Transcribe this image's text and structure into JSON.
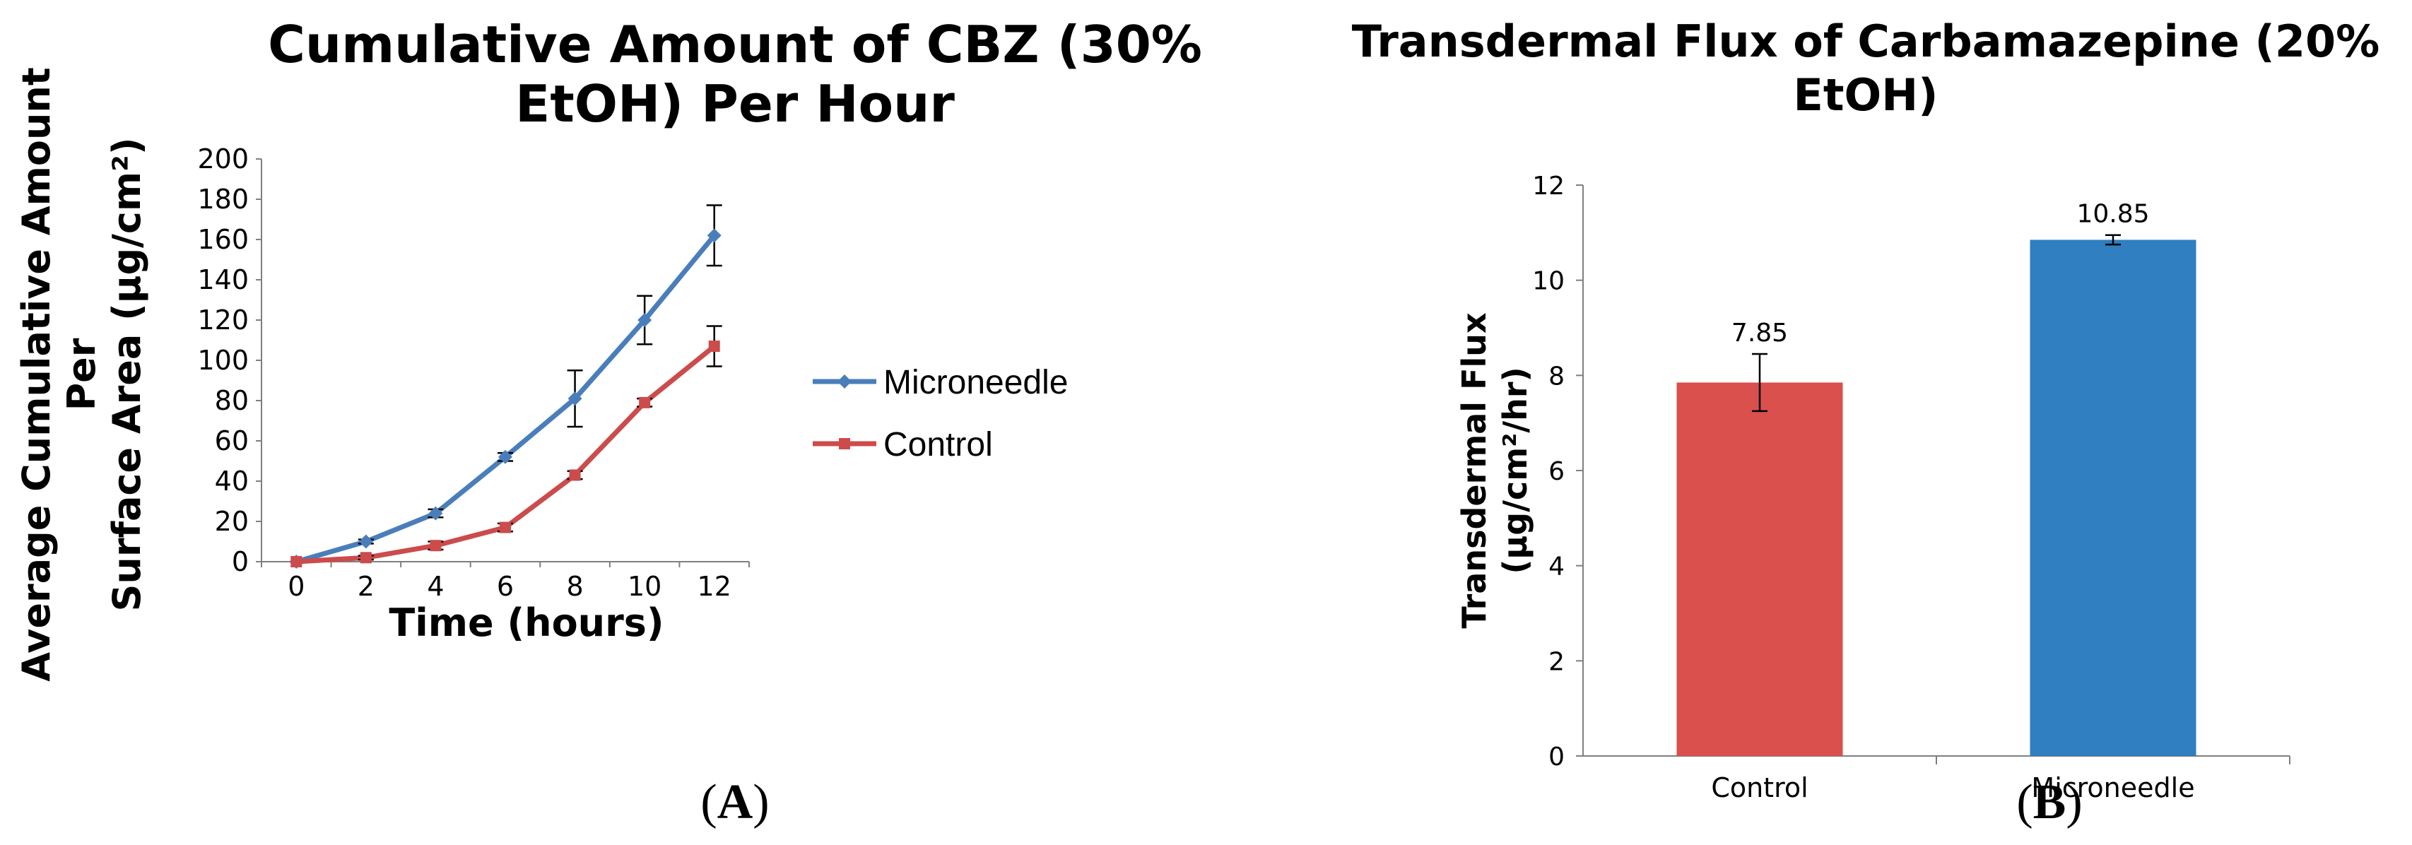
{
  "chart_data": [
    {
      "type": "line",
      "panel_label": "(A)",
      "panel_label_letter": "A",
      "title_lines": [
        "Cumulative  Amount of CBZ (30%",
        "EtOH) Per Hour"
      ],
      "xlabel": "Time (hours)",
      "ylabel_lines": [
        "Average Cumulative Amount",
        "Per",
        "Surface Area (µg/cm²)"
      ],
      "x": [
        0,
        2,
        4,
        6,
        8,
        10,
        12
      ],
      "xlim": [
        -1,
        13
      ],
      "ylim": [
        0,
        200
      ],
      "yticks": [
        0,
        20,
        40,
        60,
        80,
        100,
        120,
        140,
        160,
        180,
        200
      ],
      "grid": false,
      "legend_position": "right",
      "series": [
        {
          "name": "Microneedle",
          "color": "#4a7ebb",
          "marker": "diamond",
          "values": [
            0,
            10,
            24,
            52,
            81,
            120,
            162
          ],
          "errors": [
            0,
            1,
            2,
            2,
            14,
            12,
            15
          ]
        },
        {
          "name": "Control",
          "color": "#cc4b4b",
          "marker": "square",
          "values": [
            0,
            2,
            8,
            17,
            43,
            79,
            107
          ],
          "errors": [
            0,
            1,
            2,
            2,
            2,
            2,
            10
          ]
        }
      ]
    },
    {
      "type": "bar",
      "panel_label": "(B)",
      "panel_label_letter": "B",
      "title_lines": [
        "Transdermal Flux of Carbamazepine (20%",
        "EtOH)"
      ],
      "xlabel": "",
      "ylabel_lines": [
        "Transdermal Flux",
        "(µg/cm²/hr)"
      ],
      "categories": [
        "Control",
        "Microneedle"
      ],
      "values": [
        7.85,
        10.85
      ],
      "value_labels": [
        "7.85",
        "10.85"
      ],
      "errors": [
        0.6,
        0.1
      ],
      "colors": [
        "#d9504c",
        "#2f7fc1"
      ],
      "ylim": [
        0,
        12
      ],
      "yticks": [
        0,
        2,
        4,
        6,
        8,
        10,
        12
      ],
      "grid": false
    }
  ]
}
